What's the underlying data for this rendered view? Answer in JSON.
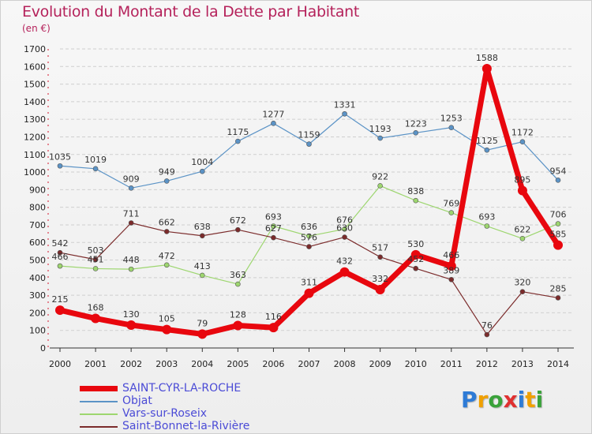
{
  "header": {
    "title": "Evolution du Montant de la Dette par Habitant",
    "unit": "(en €)"
  },
  "colors": {
    "title": "#b5225b",
    "grid": "#c8c8c8",
    "legend_text": "#4b4bd6"
  },
  "chart_data": {
    "type": "line",
    "title": "Evolution du Montant de la Dette par Habitant",
    "subtitle": "(en €)",
    "xlabel": "",
    "ylabel": "",
    "categories": [
      "2000",
      "2001",
      "2002",
      "2003",
      "2004",
      "2005",
      "2006",
      "2007",
      "2008",
      "2009",
      "2010",
      "2011",
      "2012",
      "2013",
      "2014"
    ],
    "ylim": [
      0,
      1700
    ],
    "yticks": [
      0,
      100,
      200,
      300,
      400,
      500,
      600,
      700,
      800,
      900,
      1000,
      1100,
      1200,
      1300,
      1400,
      1500,
      1600,
      1700
    ],
    "grid": "horizontal dashed",
    "legend_position": "bottom-left",
    "series": [
      {
        "name": "SAINT-CYR-LA-ROCHE",
        "color": "#e8070e",
        "width": 7,
        "marker": 6,
        "values": [
          215,
          168,
          130,
          105,
          79,
          128,
          116,
          311,
          432,
          332,
          530,
          466,
          1588,
          895,
          585
        ],
        "labels": [
          "215",
          "168",
          "130",
          "105",
          "79",
          "128",
          "116",
          "311",
          "432",
          "332",
          "530",
          "466",
          "1588",
          "895",
          "585"
        ]
      },
      {
        "name": "Objat",
        "color": "#5b93c6",
        "width": 1.2,
        "marker": 3,
        "values": [
          1035,
          1019,
          909,
          949,
          1004,
          1175,
          1277,
          1159,
          1331,
          1193,
          1223,
          1253,
          1125,
          1172,
          954
        ],
        "labels": [
          "1035",
          "1019",
          "909",
          "949",
          "1004",
          "1175",
          "1277",
          "1159",
          "1331",
          "1193",
          "1223",
          "1253",
          "1125",
          "1172",
          "954"
        ]
      },
      {
        "name": "Vars-sur-Roseix",
        "color": "#9dd66f",
        "width": 1.2,
        "marker": 3,
        "values": [
          466,
          451,
          448,
          472,
          413,
          363,
          693,
          636,
          676,
          922,
          838,
          769,
          693,
          622,
          706
        ],
        "labels": [
          "466",
          "451",
          "448",
          "472",
          "413",
          "363",
          "693",
          "636",
          "676",
          "922",
          "838",
          "769",
          "693",
          "622",
          "706"
        ]
      },
      {
        "name": "Saint-Bonnet-la-Rivière",
        "color": "#7b2b2b",
        "width": 1.2,
        "marker": 3,
        "values": [
          542,
          503,
          711,
          662,
          638,
          672,
          627,
          576,
          630,
          517,
          452,
          389,
          76,
          320,
          285
        ],
        "labels": [
          "542",
          "503",
          "711",
          "662",
          "638",
          "672",
          "627",
          "576",
          "630",
          "517",
          "452",
          "389",
          "76",
          "320",
          "285"
        ]
      }
    ]
  },
  "logo": {
    "letters": [
      "P",
      "r",
      "o",
      "x",
      "i",
      "t",
      "i"
    ],
    "colors": [
      "#2e7bd6",
      "#f0a000",
      "#3aa23a",
      "#e03030",
      "#2e7bd6",
      "#f0a000",
      "#3aa23a"
    ]
  }
}
